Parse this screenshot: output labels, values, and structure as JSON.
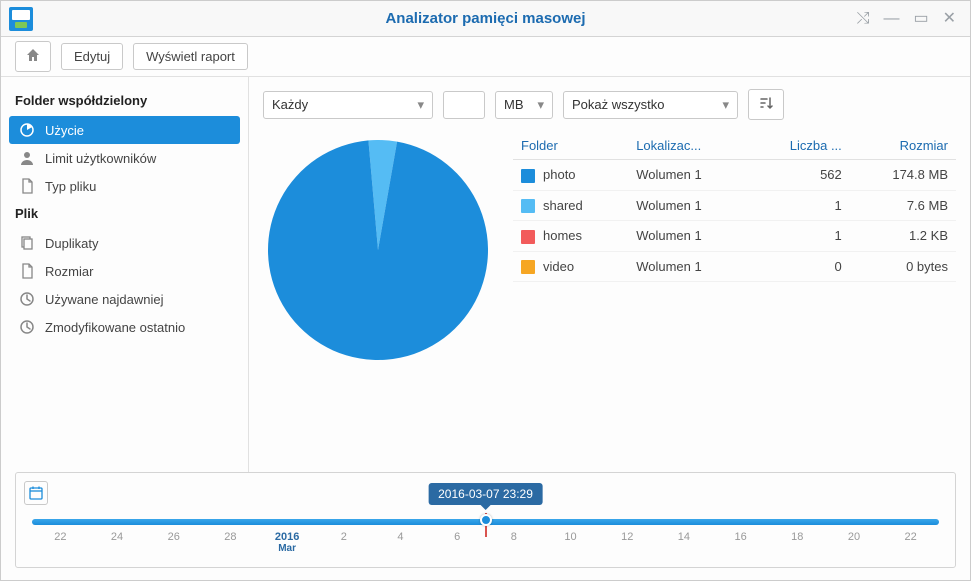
{
  "window": {
    "title": "Analizator pamięci masowej"
  },
  "toolbar": {
    "edit": "Edytuj",
    "report": "Wyświetl raport"
  },
  "sidebar": {
    "section1": "Folder współdzielony",
    "items1": [
      {
        "label": "Użycie",
        "icon": "pie"
      },
      {
        "label": "Limit użytkowników",
        "icon": "user"
      },
      {
        "label": "Typ pliku",
        "icon": "doc"
      }
    ],
    "section2": "Plik",
    "items2": [
      {
        "label": "Duplikaty",
        "icon": "copy"
      },
      {
        "label": "Rozmiar",
        "icon": "doc"
      },
      {
        "label": "Używane najdawniej",
        "icon": "clock"
      },
      {
        "label": "Zmodyfikowane ostatnio",
        "icon": "clock"
      }
    ]
  },
  "filters": {
    "all": "Każdy",
    "unit": "MB",
    "show": "Pokaż wszystko"
  },
  "table": {
    "headers": {
      "folder": "Folder",
      "location": "Lokalizac...",
      "count": "Liczba ...",
      "size": "Rozmiar"
    },
    "rows": [
      {
        "color": "#1c8ddb",
        "folder": "photo",
        "loc": "Wolumen 1",
        "count": "562",
        "size": "174.8 MB"
      },
      {
        "color": "#55bcf4",
        "folder": "shared",
        "loc": "Wolumen 1",
        "count": "1",
        "size": "7.6 MB"
      },
      {
        "color": "#f25b5b",
        "folder": "homes",
        "loc": "Wolumen 1",
        "count": "1",
        "size": "1.2 KB"
      },
      {
        "color": "#f6a623",
        "folder": "video",
        "loc": "Wolumen 1",
        "count": "0",
        "size": "0 bytes"
      }
    ]
  },
  "pie": {
    "slices": [
      {
        "color": "#55bcf4",
        "start": -5,
        "end": 10
      },
      {
        "color": "#1c8ddb",
        "start": 10,
        "end": 355
      }
    ],
    "radius": 110
  },
  "timeline": {
    "tooltip": "2016-03-07 23:29",
    "marker_pct": 50,
    "ticks": [
      "22",
      "24",
      "26",
      "28",
      "2016",
      "2",
      "4",
      "6",
      "8",
      "10",
      "12",
      "14",
      "16",
      "18",
      "20",
      "22"
    ],
    "strong_index": 4,
    "strong_sub": "Mar"
  }
}
